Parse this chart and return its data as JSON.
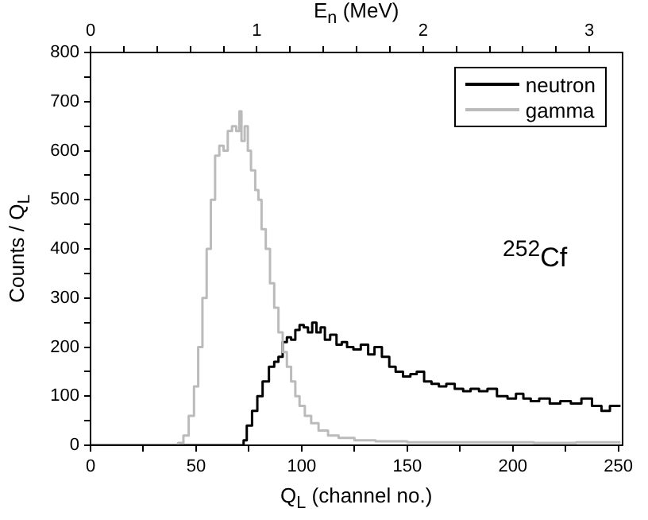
{
  "chart_data": {
    "type": "step",
    "xlabel": "Q$_{L}$ (channel no.)",
    "ylabel": "Counts / Q$_{L}$",
    "x2label": "E$_{n}$ (MeV)",
    "xlim": [
      0,
      252
    ],
    "xticks": [
      0,
      {
        "value": 25,
        "label": null
      },
      50,
      {
        "value": 75,
        "label": null
      },
      100,
      {
        "value": 125,
        "label": null
      },
      150,
      {
        "value": 175,
        "label": null
      },
      200,
      {
        "value": 225,
        "label": null
      },
      250
    ],
    "ylim": [
      0,
      800
    ],
    "yticks": [
      0,
      {
        "value": 50,
        "label": null
      },
      100,
      {
        "value": 150,
        "label": null
      },
      200,
      {
        "value": 250,
        "label": null
      },
      300,
      {
        "value": 350,
        "label": null
      },
      400,
      {
        "value": 450,
        "label": null
      },
      500,
      {
        "value": 550,
        "label": null
      },
      600,
      {
        "value": 650,
        "label": null
      },
      700,
      {
        "value": 750,
        "label": null
      },
      800
    ],
    "x2lim": [
      0,
      3.2
    ],
    "x2ticks": [
      0,
      {
        "value": 0.2,
        "label": null
      },
      {
        "value": 0.4,
        "label": null
      },
      {
        "value": 0.6,
        "label": null
      },
      {
        "value": 0.8,
        "label": null
      },
      1,
      {
        "value": 1.2,
        "label": null
      },
      {
        "value": 1.4,
        "label": null
      },
      {
        "value": 1.6,
        "label": null
      },
      {
        "value": 1.8,
        "label": null
      },
      2,
      {
        "value": 2.2,
        "label": null
      },
      {
        "value": 2.4,
        "label": null
      },
      {
        "value": 2.6,
        "label": null
      },
      {
        "value": 2.8,
        "label": null
      },
      3
    ],
    "legend": "top right",
    "grid": false,
    "annotations": [
      "$^{252}$Cf"
    ],
    "series": [
      {
        "name": "neutron",
        "color": "#000000",
        "x": [
          0,
          72,
          73,
          75,
          78,
          80,
          83,
          86,
          88,
          90,
          92,
          94,
          96,
          98,
          100,
          102,
          104,
          106,
          108,
          110,
          112,
          115,
          118,
          120,
          123,
          126,
          130,
          133,
          136,
          140,
          143,
          146,
          150,
          153,
          156,
          160,
          163,
          167,
          170,
          175,
          178,
          182,
          186,
          190,
          195,
          200,
          203,
          207,
          210,
          215,
          220,
          225,
          230,
          235,
          240,
          244,
          248,
          251
        ],
        "values": [
          0,
          0,
          10,
          40,
          70,
          100,
          130,
          160,
          170,
          180,
          210,
          220,
          215,
          235,
          245,
          240,
          230,
          250,
          230,
          240,
          215,
          225,
          205,
          210,
          200,
          195,
          205,
          185,
          200,
          180,
          160,
          150,
          140,
          145,
          150,
          130,
          125,
          120,
          125,
          115,
          110,
          115,
          110,
          115,
          100,
          95,
          105,
          95,
          90,
          95,
          85,
          90,
          85,
          95,
          80,
          70,
          80,
          80
        ]
      },
      {
        "name": "gamma",
        "color": "#bbbbbb",
        "x": [
          0,
          40,
          43,
          45,
          48,
          50,
          52,
          54,
          56,
          58,
          60,
          62,
          64,
          66,
          68,
          70,
          71,
          72,
          74,
          75,
          77,
          79,
          80,
          82,
          84,
          86,
          88,
          90,
          92,
          94,
          96,
          98,
          100,
          103,
          106,
          110,
          115,
          120,
          130,
          140,
          160,
          180,
          200,
          220,
          240,
          251
        ],
        "values": [
          0,
          0,
          5,
          20,
          60,
          120,
          200,
          300,
          400,
          500,
          590,
          610,
          600,
          640,
          650,
          640,
          680,
          620,
          650,
          600,
          560,
          520,
          500,
          440,
          400,
          330,
          280,
          230,
          190,
          160,
          130,
          100,
          80,
          60,
          45,
          30,
          20,
          15,
          10,
          8,
          6,
          6,
          6,
          5,
          6,
          6
        ]
      }
    ]
  }
}
